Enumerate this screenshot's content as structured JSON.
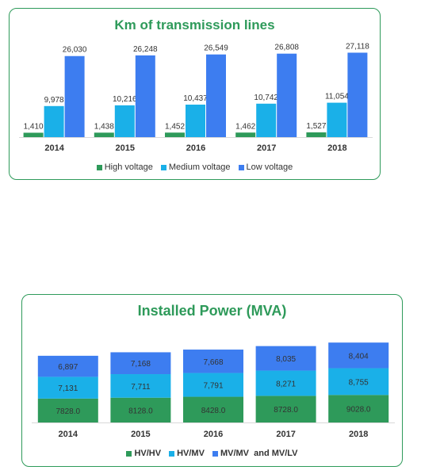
{
  "chart_data": [
    {
      "type": "bar",
      "title": "Km of transmission lines",
      "categories": [
        "2014",
        "2015",
        "2016",
        "2017",
        "2018"
      ],
      "series": [
        {
          "name": "High voltage",
          "values": [
            1410,
            1438,
            1452,
            1462,
            1527
          ],
          "labels": [
            "1,410",
            "1,438",
            "1,452",
            "1,462",
            "1,527"
          ],
          "color": "#2e9a5a"
        },
        {
          "name": "Medium voltage",
          "values": [
            9978,
            10216,
            10437,
            10742,
            11054
          ],
          "labels": [
            "9,978",
            "10,216",
            "10,437",
            "10,742",
            "11,054"
          ],
          "color": "#1ab0e8"
        },
        {
          "name": "Low voltage",
          "values": [
            26030,
            26248,
            26549,
            26808,
            27118
          ],
          "labels": [
            "26,030",
            "26,248",
            "26,549",
            "26,808",
            "27,118"
          ],
          "color": "#3d7df0"
        }
      ],
      "grid": false,
      "legend": "bottom"
    },
    {
      "type": "stacked-bar",
      "title": "Installed Power (MVA)",
      "categories": [
        "2014",
        "2015",
        "2016",
        "2017",
        "2018"
      ],
      "series": [
        {
          "name": "HV/HV",
          "values": [
            7828.0,
            8128.0,
            8428.0,
            8728.0,
            9028.0
          ],
          "labels": [
            "7828.0",
            "8128.0",
            "8428.0",
            "8728.0",
            "9028.0"
          ],
          "color": "#2e9a5a"
        },
        {
          "name": "HV/MV",
          "values": [
            7131,
            7711,
            7791,
            8271,
            8755
          ],
          "labels": [
            "7,131",
            "7,711",
            "7,791",
            "8,271",
            "8,755"
          ],
          "color": "#1ab0e8"
        },
        {
          "name": "MV/MV  and MV/LV",
          "values": [
            6897,
            7168,
            7668,
            8035,
            8404
          ],
          "labels": [
            "6,897",
            "7,168",
            "7,668",
            "8,035",
            "8,404"
          ],
          "color": "#3d7df0"
        }
      ],
      "grid": false,
      "legend": "bottom"
    }
  ]
}
